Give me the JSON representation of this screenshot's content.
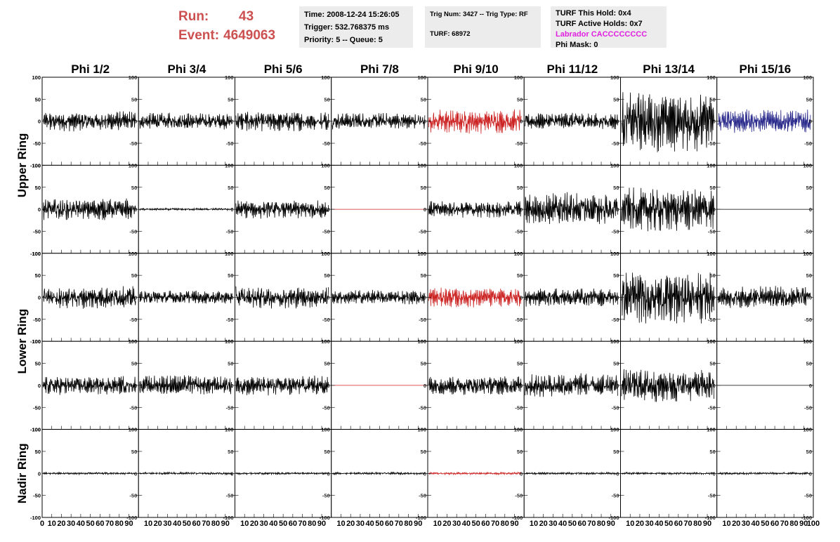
{
  "header": {
    "run_label": "Run:",
    "run_value": "43",
    "event_label": "Event:",
    "event_value": "4649063",
    "time": "Time: 2008-12-24 15:26:05",
    "trigger": "Trigger: 532.768375 ms",
    "priority": "Priority: 5 -- Queue: 5",
    "trig_num": "Trig Num: 3427 -- Trig Type: RF",
    "turf": "TURF: 68972",
    "turf_hold": "TURF This Hold: 0x4",
    "turf_active": "TURF Active Holds: 0x7",
    "labrador": "Labrador CACCCCCCCC",
    "phi_mask": "Phi Mask: 0"
  },
  "colors": {
    "run_text": "#cc5050",
    "labrador_text": "#e020e0",
    "trace_default": "#000000",
    "trace_red": "#cc2222",
    "trace_blue": "#2a2a8c",
    "panel_bg": "#ececec"
  },
  "chart_data": {
    "type": "line",
    "columns": [
      "Phi 1/2",
      "Phi 3/4",
      "Phi 5/6",
      "Phi 7/8",
      "Phi 9/10",
      "Phi 11/12",
      "Phi 13/14",
      "Phi 15/16"
    ],
    "row_groups": [
      "Upper Ring",
      "Lower Ring",
      "Nadir Ring"
    ],
    "xlim": [
      0,
      100
    ],
    "ylim": [
      -100,
      100
    ],
    "x_ticks": [
      "0",
      "10",
      "20",
      "30",
      "40",
      "50",
      "60",
      "70",
      "80",
      "90",
      "100"
    ],
    "y_ticks": [
      "100",
      "50",
      "0",
      "-50",
      "-100"
    ],
    "grid": false,
    "rows": [
      {
        "group": "Upper Ring",
        "amplitude": [
          18,
          15,
          18,
          15,
          22,
          15,
          55,
          22
        ],
        "color": [
          "black",
          "black",
          "black",
          "black",
          "red",
          "black",
          "black",
          "blue"
        ]
      },
      {
        "group": "Upper Ring",
        "amplitude": [
          20,
          2,
          17,
          0,
          15,
          30,
          40,
          0
        ],
        "color": [
          "black",
          "black",
          "black",
          "red",
          "black",
          "black",
          "black",
          "black"
        ]
      },
      {
        "group": "Lower Ring",
        "amplitude": [
          20,
          12,
          20,
          13,
          18,
          17,
          48,
          20
        ],
        "color": [
          "black",
          "black",
          "black",
          "black",
          "red",
          "black",
          "black",
          "black"
        ]
      },
      {
        "group": "Lower Ring",
        "amplitude": [
          17,
          18,
          18,
          0,
          17,
          22,
          30,
          0
        ],
        "color": [
          "black",
          "black",
          "black",
          "red",
          "black",
          "black",
          "black",
          "black"
        ]
      },
      {
        "group": "Nadir Ring",
        "amplitude": [
          2,
          2,
          2,
          2,
          2,
          2,
          2,
          2
        ],
        "color": [
          "black",
          "black",
          "black",
          "black",
          "red",
          "black",
          "black",
          "black"
        ]
      }
    ]
  }
}
